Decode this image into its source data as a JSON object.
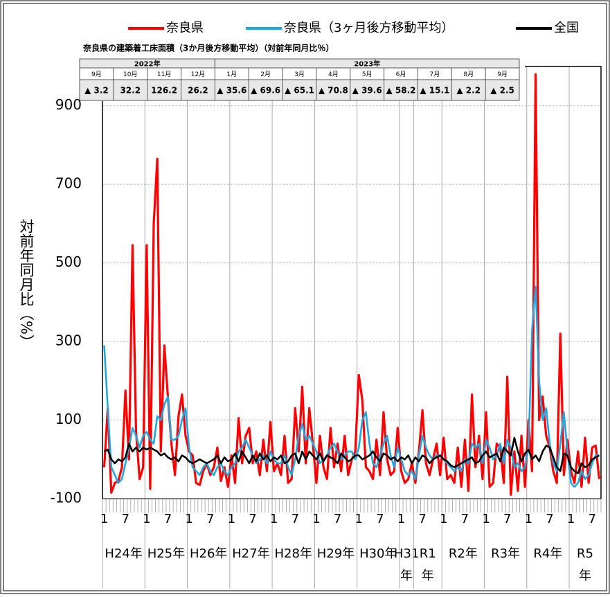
{
  "chart_data": {
    "type": "line",
    "y_label": "対前年同月比（%）",
    "categories": [
      "1",
      null,
      null,
      null,
      null,
      null,
      "7",
      null,
      null,
      null,
      null,
      null,
      "1",
      null,
      null,
      null,
      null,
      null,
      "7",
      null,
      null,
      null,
      null,
      null,
      "1",
      null,
      null,
      null,
      null,
      null,
      "7",
      null,
      null,
      null,
      null,
      null,
      "1",
      null,
      null,
      null,
      null,
      null,
      "7",
      null,
      null,
      null,
      null,
      null,
      "1",
      null,
      null,
      null,
      null,
      null,
      "7",
      null,
      null,
      null,
      null,
      null,
      "1",
      null,
      null,
      null,
      null,
      null,
      "7",
      null,
      null,
      null,
      null,
      null,
      "1",
      null,
      null,
      null,
      null,
      null,
      "7",
      null,
      null,
      null,
      null,
      null,
      "1",
      null,
      null,
      null,
      null,
      null,
      "7",
      null,
      null,
      null,
      null,
      null,
      "1",
      null,
      null,
      null,
      null,
      null,
      "7",
      null,
      null,
      null,
      null,
      null,
      "1",
      null,
      null,
      null,
      null,
      null,
      "7",
      null,
      null,
      null,
      null,
      null,
      "1",
      null,
      null,
      null,
      null,
      null,
      "7",
      null,
      null,
      null,
      null,
      null,
      "1",
      null,
      null,
      null,
      null,
      null,
      "7",
      null,
      null
    ],
    "x_groups": [
      {
        "label": "H24年",
        "start": 0
      },
      {
        "label": "H25年",
        "start": 12
      },
      {
        "label": "H26年",
        "start": 24
      },
      {
        "label": "H27年",
        "start": 36
      },
      {
        "label": "H28年",
        "start": 48
      },
      {
        "label": "H29年",
        "start": 60
      },
      {
        "label": "H30年",
        "start": 72
      },
      {
        "label": "H31年",
        "start": 84
      },
      {
        "label": "R1年",
        "start": 88
      },
      {
        "label": "R2年",
        "start": 96
      },
      {
        "label": "R3年",
        "start": 108
      },
      {
        "label": "R4年",
        "start": 120
      },
      {
        "label": "R5年",
        "start": 132
      }
    ],
    "series": [
      {
        "name": "奈良県",
        "color": "#ff0000",
        "values": [
          -20,
          130,
          -85,
          -60,
          -55,
          -20,
          175,
          0,
          545,
          70,
          -50,
          -20,
          545,
          -75,
          600,
          765,
          20,
          290,
          160,
          40,
          -40,
          110,
          165,
          60,
          20,
          10,
          -60,
          -65,
          -30,
          -10,
          -40,
          -20,
          30,
          -55,
          -20,
          -70,
          10,
          -60,
          105,
          -10,
          60,
          80,
          -10,
          20,
          -40,
          50,
          -30,
          95,
          -30,
          -10,
          -40,
          60,
          -60,
          -50,
          130,
          20,
          185,
          -10,
          130,
          40,
          -60,
          60,
          -20,
          -50,
          80,
          -20,
          40,
          -30,
          60,
          -40,
          0,
          20,
          215,
          150,
          -20,
          -30,
          -50,
          50,
          -40,
          120,
          0,
          -40,
          -30,
          80,
          -30,
          -60,
          -50,
          -10,
          -60,
          20,
          125,
          -10,
          -40,
          0,
          40,
          -40,
          55,
          -50,
          -40,
          -60,
          30,
          -70,
          50,
          -80,
          165,
          -20,
          60,
          -50,
          120,
          -70,
          -60,
          40,
          30,
          -60,
          210,
          -90,
          20,
          -80,
          60,
          -70,
          100,
          -30,
          980,
          100,
          160,
          60,
          30,
          -30,
          -60,
          320,
          -40,
          50,
          -30,
          -60,
          20,
          -70,
          55,
          -60,
          30,
          35,
          -50
        ]
      },
      {
        "name": "奈良県（3ヶ月後方移動平均）",
        "color": "#1ea7e1",
        "values": [
          290,
          130,
          -20,
          -40,
          -60,
          -50,
          -10,
          30,
          80,
          60,
          30,
          60,
          70,
          50,
          40,
          110,
          100,
          140,
          160,
          50,
          50,
          60,
          100,
          130,
          30,
          -20,
          -30,
          -40,
          -20,
          -10,
          -30,
          -40,
          -20,
          -10,
          -30,
          -40,
          -20,
          -10,
          20,
          30,
          50,
          30,
          10,
          -10,
          0,
          10,
          -10,
          20,
          0,
          -10,
          -10,
          10,
          -20,
          -40,
          0,
          60,
          90,
          50,
          60,
          40,
          20,
          -10,
          0,
          10,
          30,
          40,
          20,
          0,
          10,
          20,
          20,
          0,
          30,
          100,
          120,
          40,
          -10,
          -20,
          10,
          40,
          60,
          10,
          -20,
          30,
          0,
          -30,
          -40,
          -30,
          -50,
          10,
          60,
          30,
          10,
          0,
          10,
          10,
          0,
          -10,
          -20,
          -30,
          -20,
          -30,
          0,
          -10,
          40,
          30,
          40,
          -10,
          50,
          30,
          0,
          10,
          40,
          -10,
          50,
          30,
          -20,
          -10,
          -30,
          -20,
          30,
          330,
          440,
          200,
          100,
          130,
          40,
          -10,
          -30,
          40,
          120,
          20,
          -60,
          -70,
          -60,
          -30,
          -50,
          -40,
          -10,
          10,
          10
        ]
      },
      {
        "name": "全国",
        "color": "#000000",
        "values": [
          20,
          25,
          0,
          -10,
          0,
          -5,
          5,
          40,
          20,
          30,
          20,
          30,
          25,
          30,
          25,
          20,
          10,
          15,
          5,
          0,
          5,
          -5,
          10,
          5,
          -5,
          -10,
          -5,
          0,
          -5,
          -10,
          -5,
          0,
          10,
          -10,
          5,
          -5,
          0,
          15,
          -5,
          20,
          5,
          -10,
          10,
          -5,
          15,
          0,
          10,
          -5,
          5,
          0,
          10,
          -10,
          -5,
          10,
          15,
          -10,
          20,
          0,
          20,
          10,
          0,
          15,
          -5,
          10,
          5,
          0,
          -10,
          15,
          5,
          -5,
          0,
          10,
          10,
          0,
          5,
          10,
          20,
          5,
          -5,
          15,
          10,
          0,
          5,
          -5,
          5,
          0,
          10,
          -10,
          5,
          -5,
          10,
          5,
          -10,
          0,
          5,
          10,
          0,
          -5,
          -15,
          -20,
          -15,
          -10,
          -5,
          0,
          5,
          -10,
          -5,
          10,
          20,
          5,
          10,
          15,
          -5,
          30,
          20,
          10,
          55,
          20,
          -5,
          15,
          25,
          0,
          10,
          -5,
          20,
          35,
          30,
          5,
          -20,
          -30,
          15,
          10,
          -20,
          -30,
          -35,
          -10,
          -20,
          -15,
          0,
          5,
          10
        ]
      }
    ],
    "ylim": [
      -100,
      1000
    ],
    "yticks": [
      -100,
      100,
      300,
      500,
      700,
      900
    ],
    "grid": true
  },
  "table": {
    "title": "奈良県の建築着工床面積（3か月後方移動平均）（対前年同月比％）",
    "years": [
      "2022年",
      "2023年"
    ],
    "months": [
      "9月",
      "10月",
      "11月",
      "12月",
      "1月",
      "2月",
      "3月",
      "4月",
      "5月",
      "6月",
      "7月",
      "8月",
      "9月"
    ],
    "values": [
      "▲ 3.2",
      "32.2",
      "126.2",
      "26.2",
      "▲ 35.6",
      "▲ 69.6",
      "▲ 65.1",
      "▲ 70.8",
      "▲ 39.6",
      "▲ 58.2",
      "▲ 15.1",
      "▲ 2.2",
      "▲ 2.5"
    ]
  }
}
